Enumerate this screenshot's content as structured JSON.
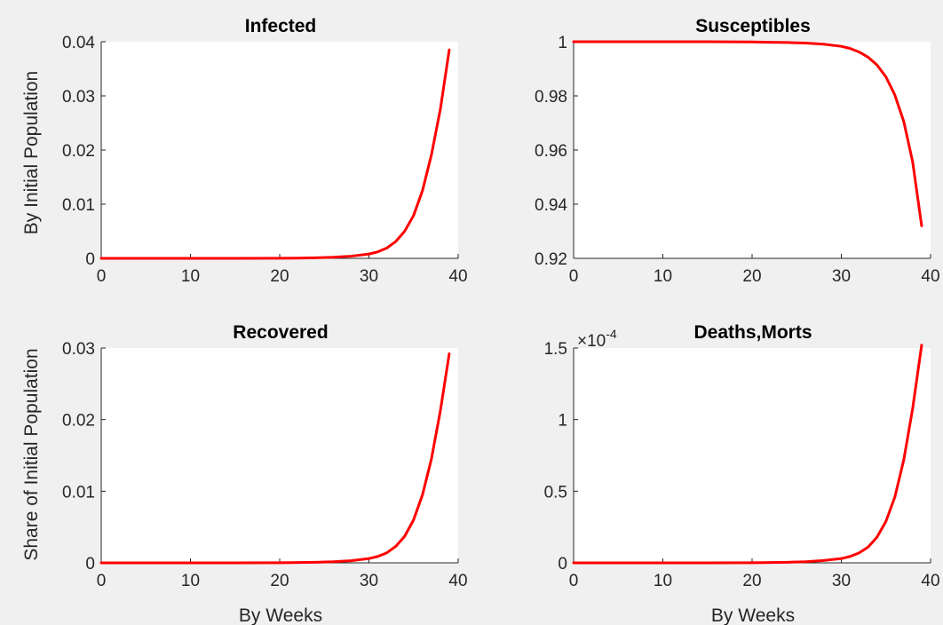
{
  "figure": {
    "background": "#f0f0f0",
    "line_color": "#ff0000"
  },
  "chart_data": [
    {
      "type": "line",
      "title": "Infected",
      "xlabel": "",
      "ylabel": "By Initial Population",
      "xlim": [
        0,
        40
      ],
      "ylim": [
        0,
        0.04
      ],
      "xticks": [
        "0",
        "10",
        "20",
        "30",
        "40"
      ],
      "yticks": [
        "0",
        "0.01",
        "0.02",
        "0.03",
        "0.04"
      ],
      "x": [
        0,
        5,
        10,
        15,
        20,
        22,
        24,
        26,
        28,
        30,
        31,
        32,
        33,
        34,
        35,
        36,
        37,
        38,
        39
      ],
      "y": [
        0,
        0,
        0,
        0,
        3e-05,
        5e-05,
        0.0001,
        0.0002,
        0.0004,
        0.0008,
        0.0012,
        0.0019,
        0.0031,
        0.005,
        0.0079,
        0.0125,
        0.0191,
        0.0275,
        0.0385
      ],
      "grid": false
    },
    {
      "type": "line",
      "title": "Susceptibles",
      "xlabel": "",
      "ylabel": "",
      "xlim": [
        0,
        40
      ],
      "ylim": [
        0.92,
        1.0
      ],
      "xticks": [
        "0",
        "10",
        "20",
        "30",
        "40"
      ],
      "yticks": [
        "0.92",
        "0.94",
        "0.96",
        "0.98",
        "1"
      ],
      "x": [
        0,
        5,
        10,
        15,
        20,
        22,
        24,
        26,
        28,
        30,
        31,
        32,
        33,
        34,
        35,
        36,
        37,
        38,
        39
      ],
      "y": [
        1.0,
        1.0,
        1.0,
        1.0,
        0.9999,
        0.9998,
        0.9997,
        0.9995,
        0.9991,
        0.9983,
        0.9975,
        0.9962,
        0.9943,
        0.9914,
        0.987,
        0.9803,
        0.9705,
        0.9555,
        0.932
      ],
      "grid": false
    },
    {
      "type": "line",
      "title": "Recovered",
      "xlabel": "By Weeks",
      "ylabel": "Share of Initial Population",
      "xlim": [
        0,
        40
      ],
      "ylim": [
        0,
        0.03
      ],
      "xticks": [
        "0",
        "10",
        "20",
        "30",
        "40"
      ],
      "yticks": [
        "0",
        "0.01",
        "0.02",
        "0.03"
      ],
      "x": [
        0,
        5,
        10,
        15,
        20,
        22,
        24,
        26,
        28,
        30,
        31,
        32,
        33,
        34,
        35,
        36,
        37,
        38,
        39
      ],
      "y": [
        0,
        0,
        0,
        0,
        2e-05,
        4e-05,
        8e-05,
        0.00016,
        0.0003,
        0.0006,
        0.0009,
        0.0014,
        0.0023,
        0.0037,
        0.006,
        0.0095,
        0.0145,
        0.0212,
        0.0292
      ],
      "grid": false
    },
    {
      "type": "line",
      "title": "Deaths,Morts",
      "xlabel": "By Weeks",
      "ylabel": "",
      "xlim": [
        0,
        40
      ],
      "ylim": [
        0,
        1.5
      ],
      "y_multiplier": "×10",
      "y_multiplier_exponent": "-4",
      "xticks": [
        "0",
        "10",
        "20",
        "30",
        "40"
      ],
      "yticks": [
        "0",
        "0.5",
        "1",
        "1.5"
      ],
      "x": [
        0,
        5,
        10,
        15,
        20,
        22,
        24,
        26,
        28,
        30,
        31,
        32,
        33,
        34,
        35,
        36,
        37,
        38,
        39
      ],
      "y": [
        0,
        0,
        0,
        0,
        0.001,
        0.002,
        0.004,
        0.008,
        0.016,
        0.03,
        0.045,
        0.07,
        0.11,
        0.18,
        0.29,
        0.46,
        0.72,
        1.08,
        1.52
      ],
      "grid": false
    }
  ]
}
